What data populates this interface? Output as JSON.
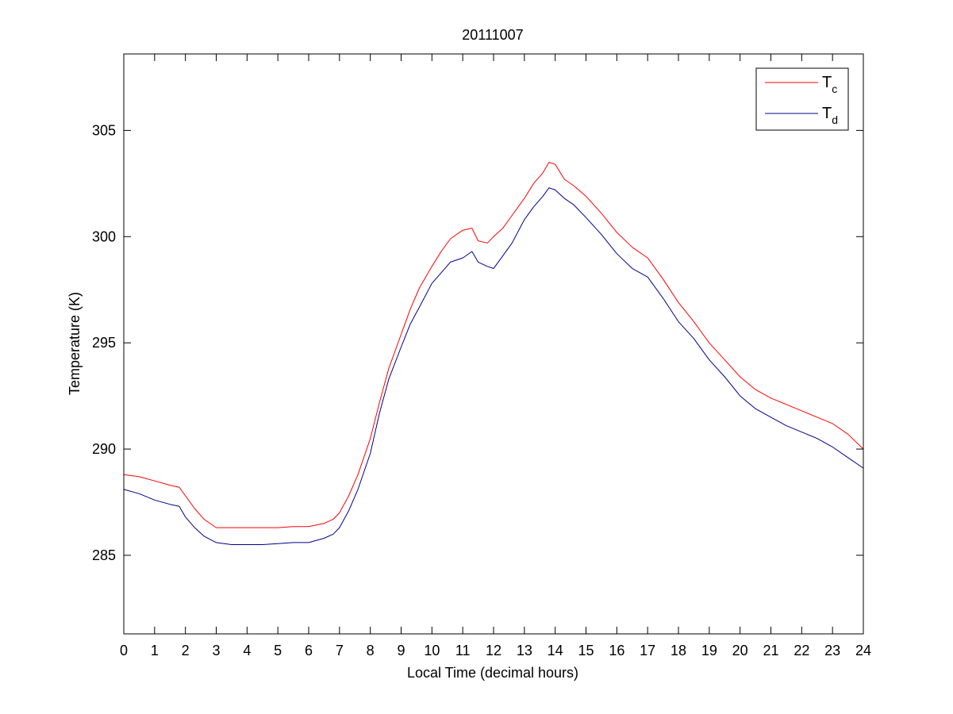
{
  "chart_data": {
    "type": "line",
    "title": "20111007",
    "xlabel": "Local Time (decimal hours)",
    "ylabel": "Temperature (K)",
    "xlim": [
      0,
      24
    ],
    "ylim": [
      281.3,
      308.6
    ],
    "xticks": [
      0,
      1,
      2,
      3,
      4,
      5,
      6,
      7,
      8,
      9,
      10,
      11,
      12,
      13,
      14,
      15,
      16,
      17,
      18,
      19,
      20,
      21,
      22,
      23,
      24
    ],
    "yticks": [
      285,
      290,
      295,
      300,
      305
    ],
    "grid": false,
    "legend_position": "top-right",
    "series": [
      {
        "name": "T_c",
        "legend_main": "T",
        "legend_sub": "c",
        "color": "#ff0000",
        "x": [
          0,
          0.5,
          1,
          1.5,
          1.8,
          2,
          2.3,
          2.6,
          3,
          3.5,
          4,
          4.5,
          5,
          5.5,
          6,
          6.5,
          6.8,
          7,
          7.3,
          7.6,
          8,
          8.3,
          8.6,
          9,
          9.3,
          9.6,
          10,
          10.3,
          10.6,
          11,
          11.3,
          11.5,
          11.8,
          12,
          12.3,
          12.6,
          13,
          13.3,
          13.6,
          13.8,
          14,
          14.3,
          14.6,
          15,
          15.5,
          16,
          16.5,
          17,
          17.5,
          18,
          18.5,
          19,
          19.5,
          20,
          20.5,
          21,
          21.5,
          22,
          22.5,
          23,
          23.5,
          24
        ],
        "y": [
          288.8,
          288.7,
          288.5,
          288.3,
          288.2,
          287.8,
          287.2,
          286.7,
          286.3,
          286.3,
          286.3,
          286.3,
          286.3,
          286.35,
          286.35,
          286.5,
          286.7,
          287.0,
          287.8,
          288.8,
          290.5,
          292.2,
          293.8,
          295.4,
          296.6,
          297.6,
          298.6,
          299.3,
          299.9,
          300.3,
          300.4,
          299.8,
          299.7,
          300.0,
          300.4,
          301.0,
          301.8,
          302.5,
          303.0,
          303.5,
          303.4,
          302.7,
          302.4,
          301.9,
          301.1,
          300.2,
          299.5,
          299.0,
          298.0,
          296.9,
          296.0,
          295.0,
          294.2,
          293.4,
          292.8,
          292.4,
          292.1,
          291.8,
          291.5,
          291.2,
          290.7,
          290.0
        ]
      },
      {
        "name": "T_d",
        "legend_main": "T",
        "legend_sub": "d",
        "color": "#00008b",
        "x": [
          0,
          0.5,
          1,
          1.5,
          1.8,
          2,
          2.3,
          2.6,
          3,
          3.5,
          4,
          4.5,
          5,
          5.5,
          6,
          6.5,
          6.8,
          7,
          7.3,
          7.6,
          8,
          8.3,
          8.6,
          9,
          9.3,
          9.6,
          10,
          10.3,
          10.6,
          11,
          11.3,
          11.5,
          11.8,
          12,
          12.3,
          12.6,
          13,
          13.3,
          13.6,
          13.8,
          14,
          14.3,
          14.6,
          15,
          15.5,
          16,
          16.5,
          17,
          17.5,
          18,
          18.5,
          19,
          19.5,
          20,
          20.5,
          21,
          21.5,
          22,
          22.5,
          23,
          23.5,
          24
        ],
        "y": [
          288.1,
          287.9,
          287.6,
          287.4,
          287.3,
          286.8,
          286.3,
          285.9,
          285.6,
          285.5,
          285.5,
          285.5,
          285.55,
          285.6,
          285.6,
          285.8,
          286.0,
          286.3,
          287.1,
          288.1,
          289.8,
          291.7,
          293.3,
          294.8,
          295.9,
          296.7,
          297.8,
          298.3,
          298.8,
          299.0,
          299.3,
          298.8,
          298.6,
          298.5,
          299.1,
          299.7,
          300.8,
          301.4,
          301.9,
          302.3,
          302.2,
          301.8,
          301.5,
          300.9,
          300.1,
          299.2,
          298.5,
          298.1,
          297.1,
          296.0,
          295.2,
          294.2,
          293.4,
          292.5,
          291.9,
          291.5,
          291.1,
          290.8,
          290.5,
          290.1,
          289.6,
          289.1
        ]
      }
    ]
  }
}
